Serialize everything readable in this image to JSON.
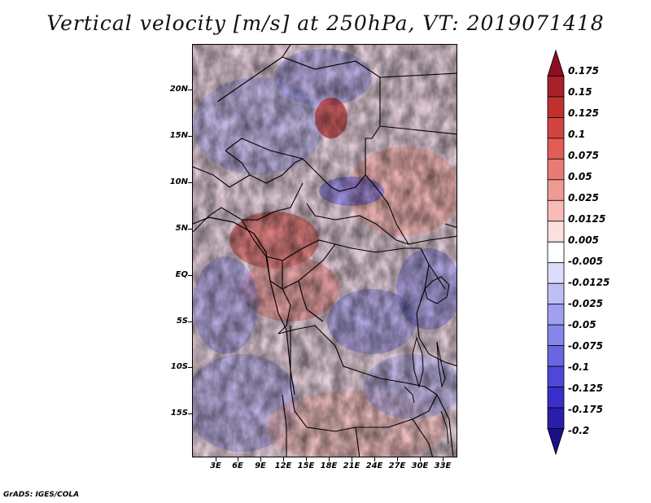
{
  "title": "Vertical velocity [m/s] at 250hPa, VT: 2019071418",
  "footer": "GrADS: IGES/COLA",
  "map": {
    "lat_labels": [
      "20N",
      "15N",
      "10N",
      "5N",
      "EQ",
      "5S",
      "10S",
      "15S"
    ],
    "lon_labels": [
      "3E",
      "6E",
      "9E",
      "12E",
      "15E",
      "18E",
      "21E",
      "24E",
      "27E",
      "30E",
      "33E"
    ],
    "field": "vertical velocity",
    "colors": {
      "positive": "#c0302e",
      "negative": "#4a45d8",
      "neutral": "#ffffff"
    }
  },
  "colorbar": {
    "labels": [
      "0.175",
      "0.15",
      "0.125",
      "0.1",
      "0.075",
      "0.05",
      "0.025",
      "0.0125",
      "0.005",
      "-0.005",
      "-0.0125",
      "-0.025",
      "-0.05",
      "-0.075",
      "-0.1",
      "-0.125",
      "-0.175",
      "-0.2"
    ],
    "colors": [
      "#8c1020",
      "#a8202a",
      "#c0302e",
      "#d24440",
      "#e05d58",
      "#e97a74",
      "#f09a94",
      "#f7bcb8",
      "#fbe0dd",
      "#ffffff",
      "#dcdcfb",
      "#bfbff6",
      "#a09ff0",
      "#8585ea",
      "#6a66e2",
      "#4f47d8",
      "#3a2fca",
      "#2a1eaa",
      "#1c0f88"
    ]
  }
}
